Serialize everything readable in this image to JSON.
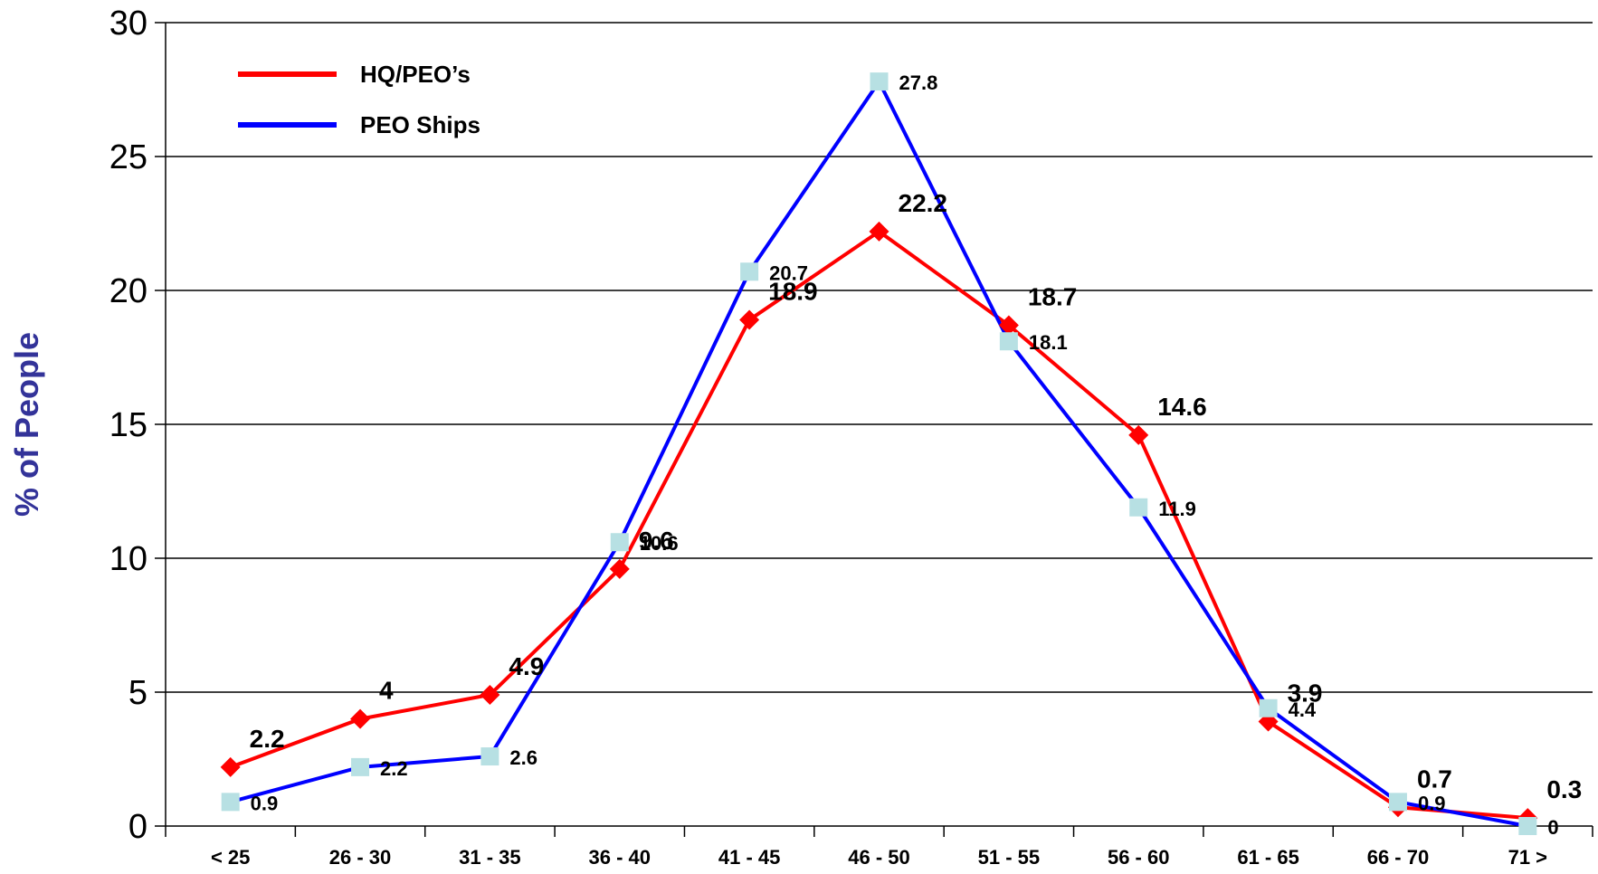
{
  "chart_data": {
    "type": "line",
    "categories": [
      "< 25",
      "26 - 30",
      "31 - 35",
      "36 - 40",
      "41 - 45",
      "46 - 50",
      "51 - 55",
      "56 - 60",
      "61 - 65",
      "66 - 70",
      "71 >"
    ],
    "series": [
      {
        "name": "HQ/PEO’s",
        "color": "#ff0000",
        "marker": "diamond",
        "values": [
          2.2,
          4,
          4.9,
          9.6,
          18.9,
          22.2,
          18.7,
          14.6,
          3.9,
          0.7,
          0.3
        ],
        "labels": [
          "2.2",
          "4",
          "4.9",
          "9.6",
          "18.9",
          "22.2",
          "18.7",
          "14.6",
          "3.9",
          "0.7",
          "0.3"
        ]
      },
      {
        "name": "PEO Ships",
        "color": "#0000ff",
        "marker": "square",
        "marker_color": "#b7e0e3",
        "values": [
          0.9,
          2.2,
          2.6,
          10.6,
          20.7,
          27.8,
          18.1,
          11.9,
          4.4,
          0.9,
          0
        ],
        "labels": [
          "0.9",
          "2.2",
          "2.6",
          "10.6",
          "20.7",
          "27.8",
          "18.1",
          "11.9",
          "4.4",
          "0.9",
          "0"
        ]
      }
    ],
    "ylabel": "%  of People",
    "ylabel_color": "#333399",
    "ylim": [
      0,
      30
    ],
    "yticks": [
      0,
      5,
      10,
      15,
      20,
      25,
      30
    ],
    "grid": true,
    "legend_position": "top-left"
  }
}
